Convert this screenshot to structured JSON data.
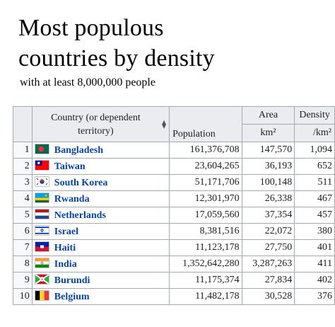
{
  "title_line1": "Most populous",
  "title_line2": "countries by density",
  "subtitle": "with at least 8,000,000 people",
  "headers": {
    "country": "Country (or dependent territory)",
    "population": "Population",
    "area": "Area",
    "area_unit": "km²",
    "density": "Density",
    "density_unit": "/km²"
  },
  "rows": [
    {
      "rank": "1",
      "country": "Bangladesh",
      "flag": "bangladesh-flag-icon",
      "population": "161,376,708",
      "area": "147,570",
      "density": "1,094"
    },
    {
      "rank": "2",
      "country": "Taiwan",
      "flag": "taiwan-flag-icon",
      "population": "23,604,265",
      "area": "36,193",
      "density": "652"
    },
    {
      "rank": "3",
      "country": "South Korea",
      "flag": "south-korea-flag-icon",
      "population": "51,171,706",
      "area": "100,148",
      "density": "511"
    },
    {
      "rank": "4",
      "country": "Rwanda",
      "flag": "rwanda-flag-icon",
      "population": "12,301,970",
      "area": "26,338",
      "density": "467"
    },
    {
      "rank": "5",
      "country": "Netherlands",
      "flag": "netherlands-flag-icon",
      "population": "17,059,560",
      "area": "37,354",
      "density": "457"
    },
    {
      "rank": "6",
      "country": "Israel",
      "flag": "israel-flag-icon",
      "population": "8,381,516",
      "area": "22,072",
      "density": "380"
    },
    {
      "rank": "7",
      "country": "Haiti",
      "flag": "haiti-flag-icon",
      "population": "11,123,178",
      "area": "27,750",
      "density": "401"
    },
    {
      "rank": "8",
      "country": "India",
      "flag": "india-flag-icon",
      "population": "1,352,642,280",
      "area": "3,287,263",
      "density": "411"
    },
    {
      "rank": "9",
      "country": "Burundi",
      "flag": "burundi-flag-icon",
      "population": "11,175,374",
      "area": "27,834",
      "density": "402"
    },
    {
      "rank": "10",
      "country": "Belgium",
      "flag": "belgium-flag-icon",
      "population": "11,482,178",
      "area": "30,528",
      "density": "376"
    }
  ],
  "colors": {
    "link": "#0645ad",
    "header_bg": "#eaecf0",
    "rank_bg": "#f8f9fa",
    "border": "#a2a9b1"
  }
}
